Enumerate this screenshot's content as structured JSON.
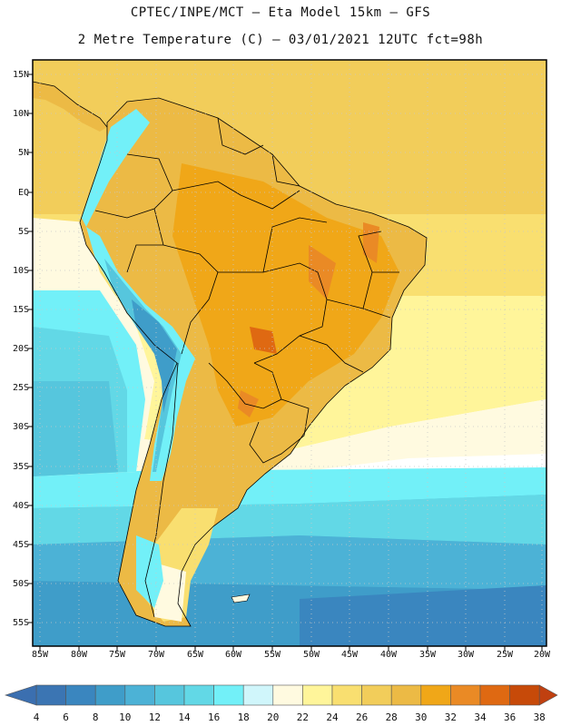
{
  "header": {
    "line1": "CPTEC/INPE/MCT –  Eta Model 15km – GFS",
    "line2": "2 Metre Temperature (C) – 03/01/2021 12UTC fct=98h"
  },
  "map": {
    "lat_labels": [
      "15N",
      "10N",
      "5N",
      "EQ",
      "5S",
      "10S",
      "15S",
      "20S",
      "25S",
      "30S",
      "35S",
      "40S",
      "45S",
      "50S",
      "55S"
    ],
    "lon_labels": [
      "85W",
      "80W",
      "75W",
      "70W",
      "65W",
      "60W",
      "55W",
      "50W",
      "45W",
      "40W",
      "35W",
      "30W",
      "25W",
      "20W"
    ]
  },
  "colorbar": {
    "labels": [
      "4",
      "6",
      "8",
      "10",
      "12",
      "14",
      "16",
      "18",
      "20",
      "22",
      "24",
      "26",
      "28",
      "30",
      "32",
      "34",
      "36",
      "38"
    ],
    "colors": [
      "#3b75b3",
      "#3a86bf",
      "#3f9dc9",
      "#4cb2d6",
      "#56c6dd",
      "#62d8e6",
      "#72f0f8",
      "#d0f6fb",
      "#fffae0",
      "#fff59a",
      "#f9df70",
      "#f2cd5a",
      "#ecba45",
      "#f0a718",
      "#ea8a25",
      "#df6912",
      "#c74a09"
    ],
    "end_low": "#3b6fb0",
    "end_high": "#c04010"
  }
}
